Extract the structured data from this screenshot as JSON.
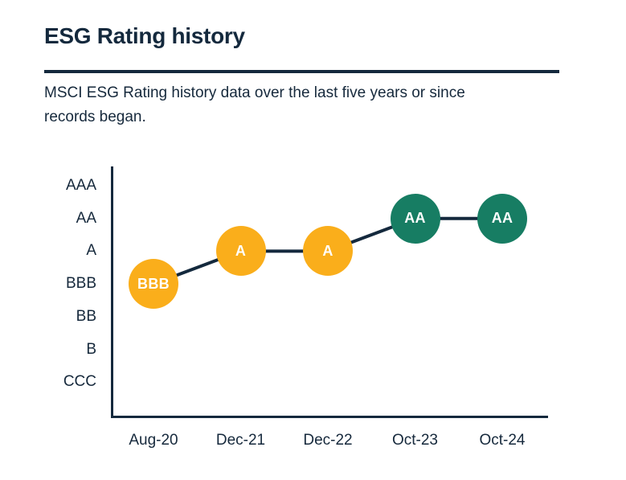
{
  "page": {
    "title": "ESG Rating history",
    "subtitle_lines": [
      "MSCI ESG Rating history data over the last five years or since",
      "records began."
    ]
  },
  "colors": {
    "navy": "#14293D",
    "yellow": "#FAAE1B",
    "teal": "#177D63",
    "marker_text": "#FFFFFF",
    "background": "#FFFFFF"
  },
  "chart_data": {
    "type": "line",
    "title": "",
    "xlabel": "",
    "ylabel": "",
    "grid": false,
    "legend": false,
    "x": [
      "Aug-20",
      "Dec-21",
      "Dec-22",
      "Oct-23",
      "Oct-24"
    ],
    "y_scale_top_to_bottom": [
      "AAA",
      "AA",
      "A",
      "BBB",
      "BB",
      "B",
      "CCC"
    ],
    "values": [
      "BBB",
      "A",
      "A",
      "AA",
      "AA"
    ],
    "point_colors": [
      "#FAAE1B",
      "#FAAE1B",
      "#FAAE1B",
      "#177D63",
      "#177D63"
    ],
    "line_color": "#14293D",
    "marker_label_color": "#FFFFFF"
  }
}
